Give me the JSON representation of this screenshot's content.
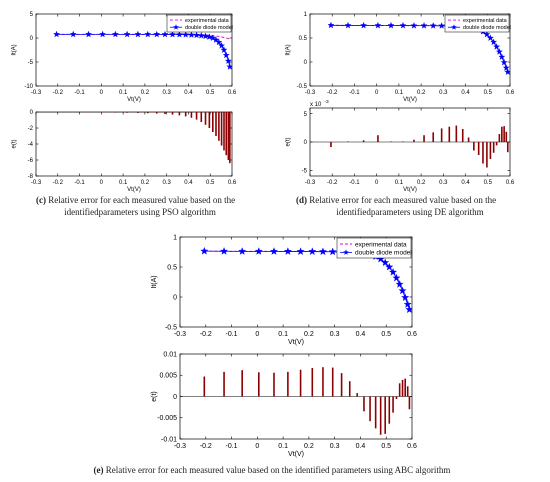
{
  "legend": {
    "experimental": "experimental data",
    "model": "double diode model"
  },
  "colors": {
    "experimental": "#e000e0",
    "model": "#0000ff",
    "error_bar": "#8b0000",
    "axis": "#000000"
  },
  "captions": {
    "c": {
      "label": "(c)",
      "line1": " Relative error for each measured value based on the",
      "line2": "identifiedparameters using PSO algorithm"
    },
    "d": {
      "label": "(d)",
      "line1": " Relative error for each measured value based on the",
      "line2": "identifiedparameters using DE algorithm"
    },
    "e": {
      "label": "(e)",
      "line1": " Relative error for each measured value based on the identified parameters using ABC algorithm"
    }
  },
  "chart_data": [
    {
      "id": "c-top",
      "type": "line",
      "xlabel": "Vt(V)",
      "ylabel": "It(A)",
      "xlim": [
        -0.3,
        0.6
      ],
      "ylim": [
        -10,
        5
      ],
      "xticks": [
        -0.3,
        -0.2,
        -0.1,
        0,
        0.1,
        0.2,
        0.3,
        0.4,
        0.5,
        0.6
      ],
      "xtick_labels": [
        "-0.3",
        "-0.2",
        "-0.1",
        "0",
        "0.1",
        "0.2",
        "0.3",
        "0.4",
        "0.5",
        "0.6"
      ],
      "yticks": [
        -10,
        -5,
        0,
        5
      ],
      "ytick_labels": [
        "-10",
        "-5",
        "0",
        "5"
      ],
      "legend": true,
      "series": [
        {
          "name": "experimental data",
          "style": "dashed",
          "x": [
            -0.2057,
            -0.1291,
            -0.0588,
            0.0057,
            0.0646,
            0.1185,
            0.1678,
            0.2132,
            0.2545,
            0.2924,
            0.3269,
            0.3585,
            0.3873,
            0.4137,
            0.4373,
            0.459,
            0.4784,
            0.496,
            0.5119,
            0.5265,
            0.5398,
            0.5521,
            0.5633,
            0.5736,
            0.5833,
            0.59
          ],
          "y": [
            0.764,
            0.762,
            0.7605,
            0.7605,
            0.76,
            0.759,
            0.757,
            0.757,
            0.7555,
            0.754,
            0.7505,
            0.7465,
            0.7385,
            0.728,
            0.7065,
            0.6755,
            0.632,
            0.573,
            0.499,
            0.413,
            0.3165,
            0.212,
            0.1035,
            -0.01,
            -0.123,
            -0.21
          ]
        },
        {
          "name": "double diode model",
          "style": "star",
          "x": [
            -0.2057,
            -0.1291,
            -0.0588,
            0.0057,
            0.0646,
            0.1185,
            0.1678,
            0.2132,
            0.2545,
            0.2924,
            0.3269,
            0.3585,
            0.3873,
            0.4137,
            0.4373,
            0.459,
            0.4784,
            0.496,
            0.5119,
            0.5265,
            0.5398,
            0.5521,
            0.5633,
            0.5736,
            0.5833,
            0.59
          ],
          "y": [
            0.764,
            0.762,
            0.761,
            0.761,
            0.76,
            0.759,
            0.757,
            0.754,
            0.75,
            0.744,
            0.733,
            0.716,
            0.688,
            0.645,
            0.585,
            0.5,
            0.38,
            0.22,
            0.0,
            -0.4,
            -0.9,
            -1.6,
            -2.5,
            -3.6,
            -4.8,
            -6.0
          ]
        }
      ]
    },
    {
      "id": "c-bottom",
      "type": "bar",
      "xlabel": "Vt(V)",
      "ylabel": "e(t)",
      "xlim": [
        -0.3,
        0.6
      ],
      "ylim": [
        -8,
        0
      ],
      "xticks": [
        -0.3,
        -0.2,
        -0.1,
        0,
        0.1,
        0.2,
        0.3,
        0.4,
        0.5,
        0.6
      ],
      "xtick_labels": [
        "-0.3",
        "-0.2",
        "-0.1",
        "0",
        "0.1",
        "0.2",
        "0.3",
        "0.4",
        "0.5",
        "0.6"
      ],
      "yticks": [
        -8,
        -6,
        -4,
        -2,
        0
      ],
      "ytick_labels": [
        "-8",
        "-6",
        "-4",
        "-2",
        "0"
      ],
      "x": [
        -0.2057,
        -0.1291,
        -0.0588,
        0.0057,
        0.0646,
        0.1185,
        0.1678,
        0.2132,
        0.2545,
        0.2924,
        0.3269,
        0.3585,
        0.3873,
        0.4137,
        0.4373,
        0.459,
        0.4784,
        0.496,
        0.5119,
        0.5265,
        0.5398,
        0.5521,
        0.5633,
        0.5736,
        0.5833,
        0.59
      ],
      "values": [
        -0.03,
        -0.04,
        -0.05,
        -0.06,
        -0.08,
        -0.1,
        -0.12,
        -0.15,
        -0.2,
        -0.25,
        -0.32,
        -0.42,
        -0.55,
        -0.72,
        -0.95,
        -1.25,
        -1.6,
        -2.0,
        -2.5,
        -3.0,
        -3.6,
        -4.2,
        -4.8,
        -5.4,
        -6.0,
        -6.4
      ]
    },
    {
      "id": "d-top",
      "type": "line",
      "xlabel": "Vt(V)",
      "ylabel": "It(A)",
      "xlim": [
        -0.3,
        0.6
      ],
      "ylim": [
        -0.5,
        1
      ],
      "xticks": [
        -0.3,
        -0.2,
        -0.1,
        0,
        0.1,
        0.2,
        0.3,
        0.4,
        0.5,
        0.6
      ],
      "xtick_labels": [
        "-0.3",
        "-0.2",
        "-0.1",
        "0",
        "0.1",
        "0.2",
        "0.3",
        "0.4",
        "0.5",
        "0.6"
      ],
      "yticks": [
        -0.5,
        0,
        0.5,
        1
      ],
      "ytick_labels": [
        "-0.5",
        "0",
        "0.5",
        "1"
      ],
      "legend": true,
      "series": [
        {
          "name": "experimental data",
          "style": "dashed",
          "x": [
            -0.2057,
            -0.1291,
            -0.0588,
            0.0057,
            0.0646,
            0.1185,
            0.1678,
            0.2132,
            0.2545,
            0.2924,
            0.3269,
            0.3585,
            0.3873,
            0.4137,
            0.4373,
            0.459,
            0.4784,
            0.496,
            0.5119,
            0.5265,
            0.5398,
            0.5521,
            0.5633,
            0.5736,
            0.5833,
            0.59
          ],
          "y": [
            0.764,
            0.762,
            0.7605,
            0.7605,
            0.76,
            0.759,
            0.757,
            0.757,
            0.7555,
            0.754,
            0.7505,
            0.7465,
            0.7385,
            0.728,
            0.7065,
            0.6755,
            0.632,
            0.573,
            0.499,
            0.413,
            0.3165,
            0.212,
            0.1035,
            -0.01,
            -0.123,
            -0.21
          ]
        },
        {
          "name": "double diode model",
          "style": "star",
          "x": [
            -0.2057,
            -0.1291,
            -0.0588,
            0.0057,
            0.0646,
            0.1185,
            0.1678,
            0.2132,
            0.2545,
            0.2924,
            0.3269,
            0.3585,
            0.3873,
            0.4137,
            0.4373,
            0.459,
            0.4784,
            0.496,
            0.5119,
            0.5265,
            0.5398,
            0.5521,
            0.5633,
            0.5736,
            0.5833,
            0.59
          ],
          "y": [
            0.764,
            0.762,
            0.7605,
            0.7605,
            0.76,
            0.759,
            0.757,
            0.757,
            0.7555,
            0.754,
            0.7505,
            0.7465,
            0.7385,
            0.728,
            0.7065,
            0.6755,
            0.632,
            0.573,
            0.499,
            0.413,
            0.3165,
            0.212,
            0.1035,
            -0.01,
            -0.123,
            -0.21
          ]
        }
      ]
    },
    {
      "id": "d-bottom",
      "type": "bar",
      "xlabel": "Vt(V)",
      "ylabel": "e(t)",
      "exponent_label": "x 10",
      "exponent_power": "-3",
      "xlim": [
        -0.3,
        0.6
      ],
      "ylim": [
        -0.006,
        0.006
      ],
      "xticks": [
        -0.3,
        -0.2,
        -0.1,
        0,
        0.1,
        0.2,
        0.3,
        0.4,
        0.5,
        0.6
      ],
      "xtick_labels": [
        "-0.3",
        "-0.2",
        "-0.1",
        "0",
        "0.1",
        "0.2",
        "0.3",
        "0.4",
        "0.5",
        "0.6"
      ],
      "yticks": [
        -0.005,
        0,
        0.005
      ],
      "ytick_labels": [
        "-5",
        "0",
        "5"
      ],
      "x": [
        -0.2057,
        -0.1291,
        -0.0588,
        0.0057,
        0.0646,
        0.1185,
        0.1678,
        0.2132,
        0.2545,
        0.2924,
        0.3269,
        0.3585,
        0.3873,
        0.4137,
        0.4373,
        0.459,
        0.4784,
        0.496,
        0.5119,
        0.5265,
        0.5398,
        0.5521,
        0.5633,
        0.5736,
        0.5833,
        0.59
      ],
      "values": [
        -0.0009,
        0.0001,
        0.0003,
        0.0012,
        0.0001,
        0.0001,
        0.0004,
        0.0012,
        0.0017,
        0.0024,
        0.0027,
        0.0029,
        0.0023,
        0.0008,
        -0.0015,
        -0.0023,
        -0.0038,
        -0.0045,
        -0.003,
        -0.0019,
        -0.0006,
        0.0014,
        0.0027,
        0.0028,
        0.0018,
        -0.0018
      ]
    },
    {
      "id": "e-top",
      "type": "line",
      "xlabel": "Vt(V)",
      "ylabel": "It(A)",
      "xlim": [
        -0.3,
        0.6
      ],
      "ylim": [
        -0.5,
        1
      ],
      "xticks": [
        -0.3,
        -0.2,
        -0.1,
        0,
        0.1,
        0.2,
        0.3,
        0.4,
        0.5,
        0.6
      ],
      "xtick_labels": [
        "-0.3",
        "-0.2",
        "-0.1",
        "0",
        "0.1",
        "0.2",
        "0.3",
        "0.4",
        "0.5",
        "0.6"
      ],
      "yticks": [
        -0.5,
        0,
        0.5,
        1
      ],
      "ytick_labels": [
        "-0.5",
        "0",
        "0.5",
        "1"
      ],
      "legend": true,
      "series": [
        {
          "name": "experimental data",
          "style": "dashed",
          "x": [
            -0.2057,
            -0.1291,
            -0.0588,
            0.0057,
            0.0646,
            0.1185,
            0.1678,
            0.2132,
            0.2545,
            0.2924,
            0.3269,
            0.3585,
            0.3873,
            0.4137,
            0.4373,
            0.459,
            0.4784,
            0.496,
            0.5119,
            0.5265,
            0.5398,
            0.5521,
            0.5633,
            0.5736,
            0.5833,
            0.59
          ],
          "y": [
            0.764,
            0.762,
            0.7605,
            0.7605,
            0.76,
            0.759,
            0.757,
            0.757,
            0.7555,
            0.754,
            0.7505,
            0.7465,
            0.7385,
            0.728,
            0.7065,
            0.6755,
            0.632,
            0.573,
            0.499,
            0.413,
            0.3165,
            0.212,
            0.1035,
            -0.01,
            -0.123,
            -0.21
          ]
        },
        {
          "name": "double diode model",
          "style": "star",
          "x": [
            -0.2057,
            -0.1291,
            -0.0588,
            0.0057,
            0.0646,
            0.1185,
            0.1678,
            0.2132,
            0.2545,
            0.2924,
            0.3269,
            0.3585,
            0.3873,
            0.4137,
            0.4373,
            0.459,
            0.4784,
            0.496,
            0.5119,
            0.5265,
            0.5398,
            0.5521,
            0.5633,
            0.5736,
            0.5833,
            0.59
          ],
          "y": [
            0.764,
            0.762,
            0.7605,
            0.7605,
            0.76,
            0.759,
            0.757,
            0.757,
            0.7555,
            0.754,
            0.7505,
            0.7465,
            0.7385,
            0.728,
            0.7065,
            0.6755,
            0.632,
            0.573,
            0.499,
            0.413,
            0.3165,
            0.212,
            0.1035,
            -0.01,
            -0.123,
            -0.21
          ]
        }
      ]
    },
    {
      "id": "e-bottom",
      "type": "bar",
      "xlabel": "Vt(V)",
      "ylabel": "e(t)",
      "xlim": [
        -0.3,
        0.6
      ],
      "ylim": [
        -0.01,
        0.01
      ],
      "xticks": [
        -0.3,
        -0.2,
        -0.1,
        0,
        0.1,
        0.2,
        0.3,
        0.4,
        0.5,
        0.6
      ],
      "xtick_labels": [
        "-0.3",
        "-0.2",
        "-0.1",
        "0",
        "0.1",
        "0.2",
        "0.3",
        "0.4",
        "0.5",
        "0.6"
      ],
      "yticks": [
        -0.01,
        -0.005,
        0,
        0.005,
        0.01
      ],
      "ytick_labels": [
        "-0.01",
        "-0.005",
        "0",
        "0.005",
        "0.01"
      ],
      "x": [
        -0.2057,
        -0.1291,
        -0.0588,
        0.0057,
        0.0646,
        0.1185,
        0.1678,
        0.2132,
        0.2545,
        0.2924,
        0.3269,
        0.3585,
        0.3873,
        0.4137,
        0.4373,
        0.459,
        0.4784,
        0.496,
        0.5119,
        0.5265,
        0.5398,
        0.5521,
        0.5633,
        0.5736,
        0.5833,
        0.59
      ],
      "values": [
        0.0047,
        0.0058,
        0.0062,
        0.0057,
        0.0056,
        0.0058,
        0.0063,
        0.0067,
        0.0069,
        0.0068,
        0.0055,
        0.0036,
        0.0008,
        -0.0035,
        -0.0058,
        -0.0075,
        -0.009,
        -0.0088,
        -0.0064,
        -0.0038,
        -0.0006,
        0.0031,
        0.0039,
        0.0042,
        0.0024,
        -0.003
      ]
    }
  ]
}
